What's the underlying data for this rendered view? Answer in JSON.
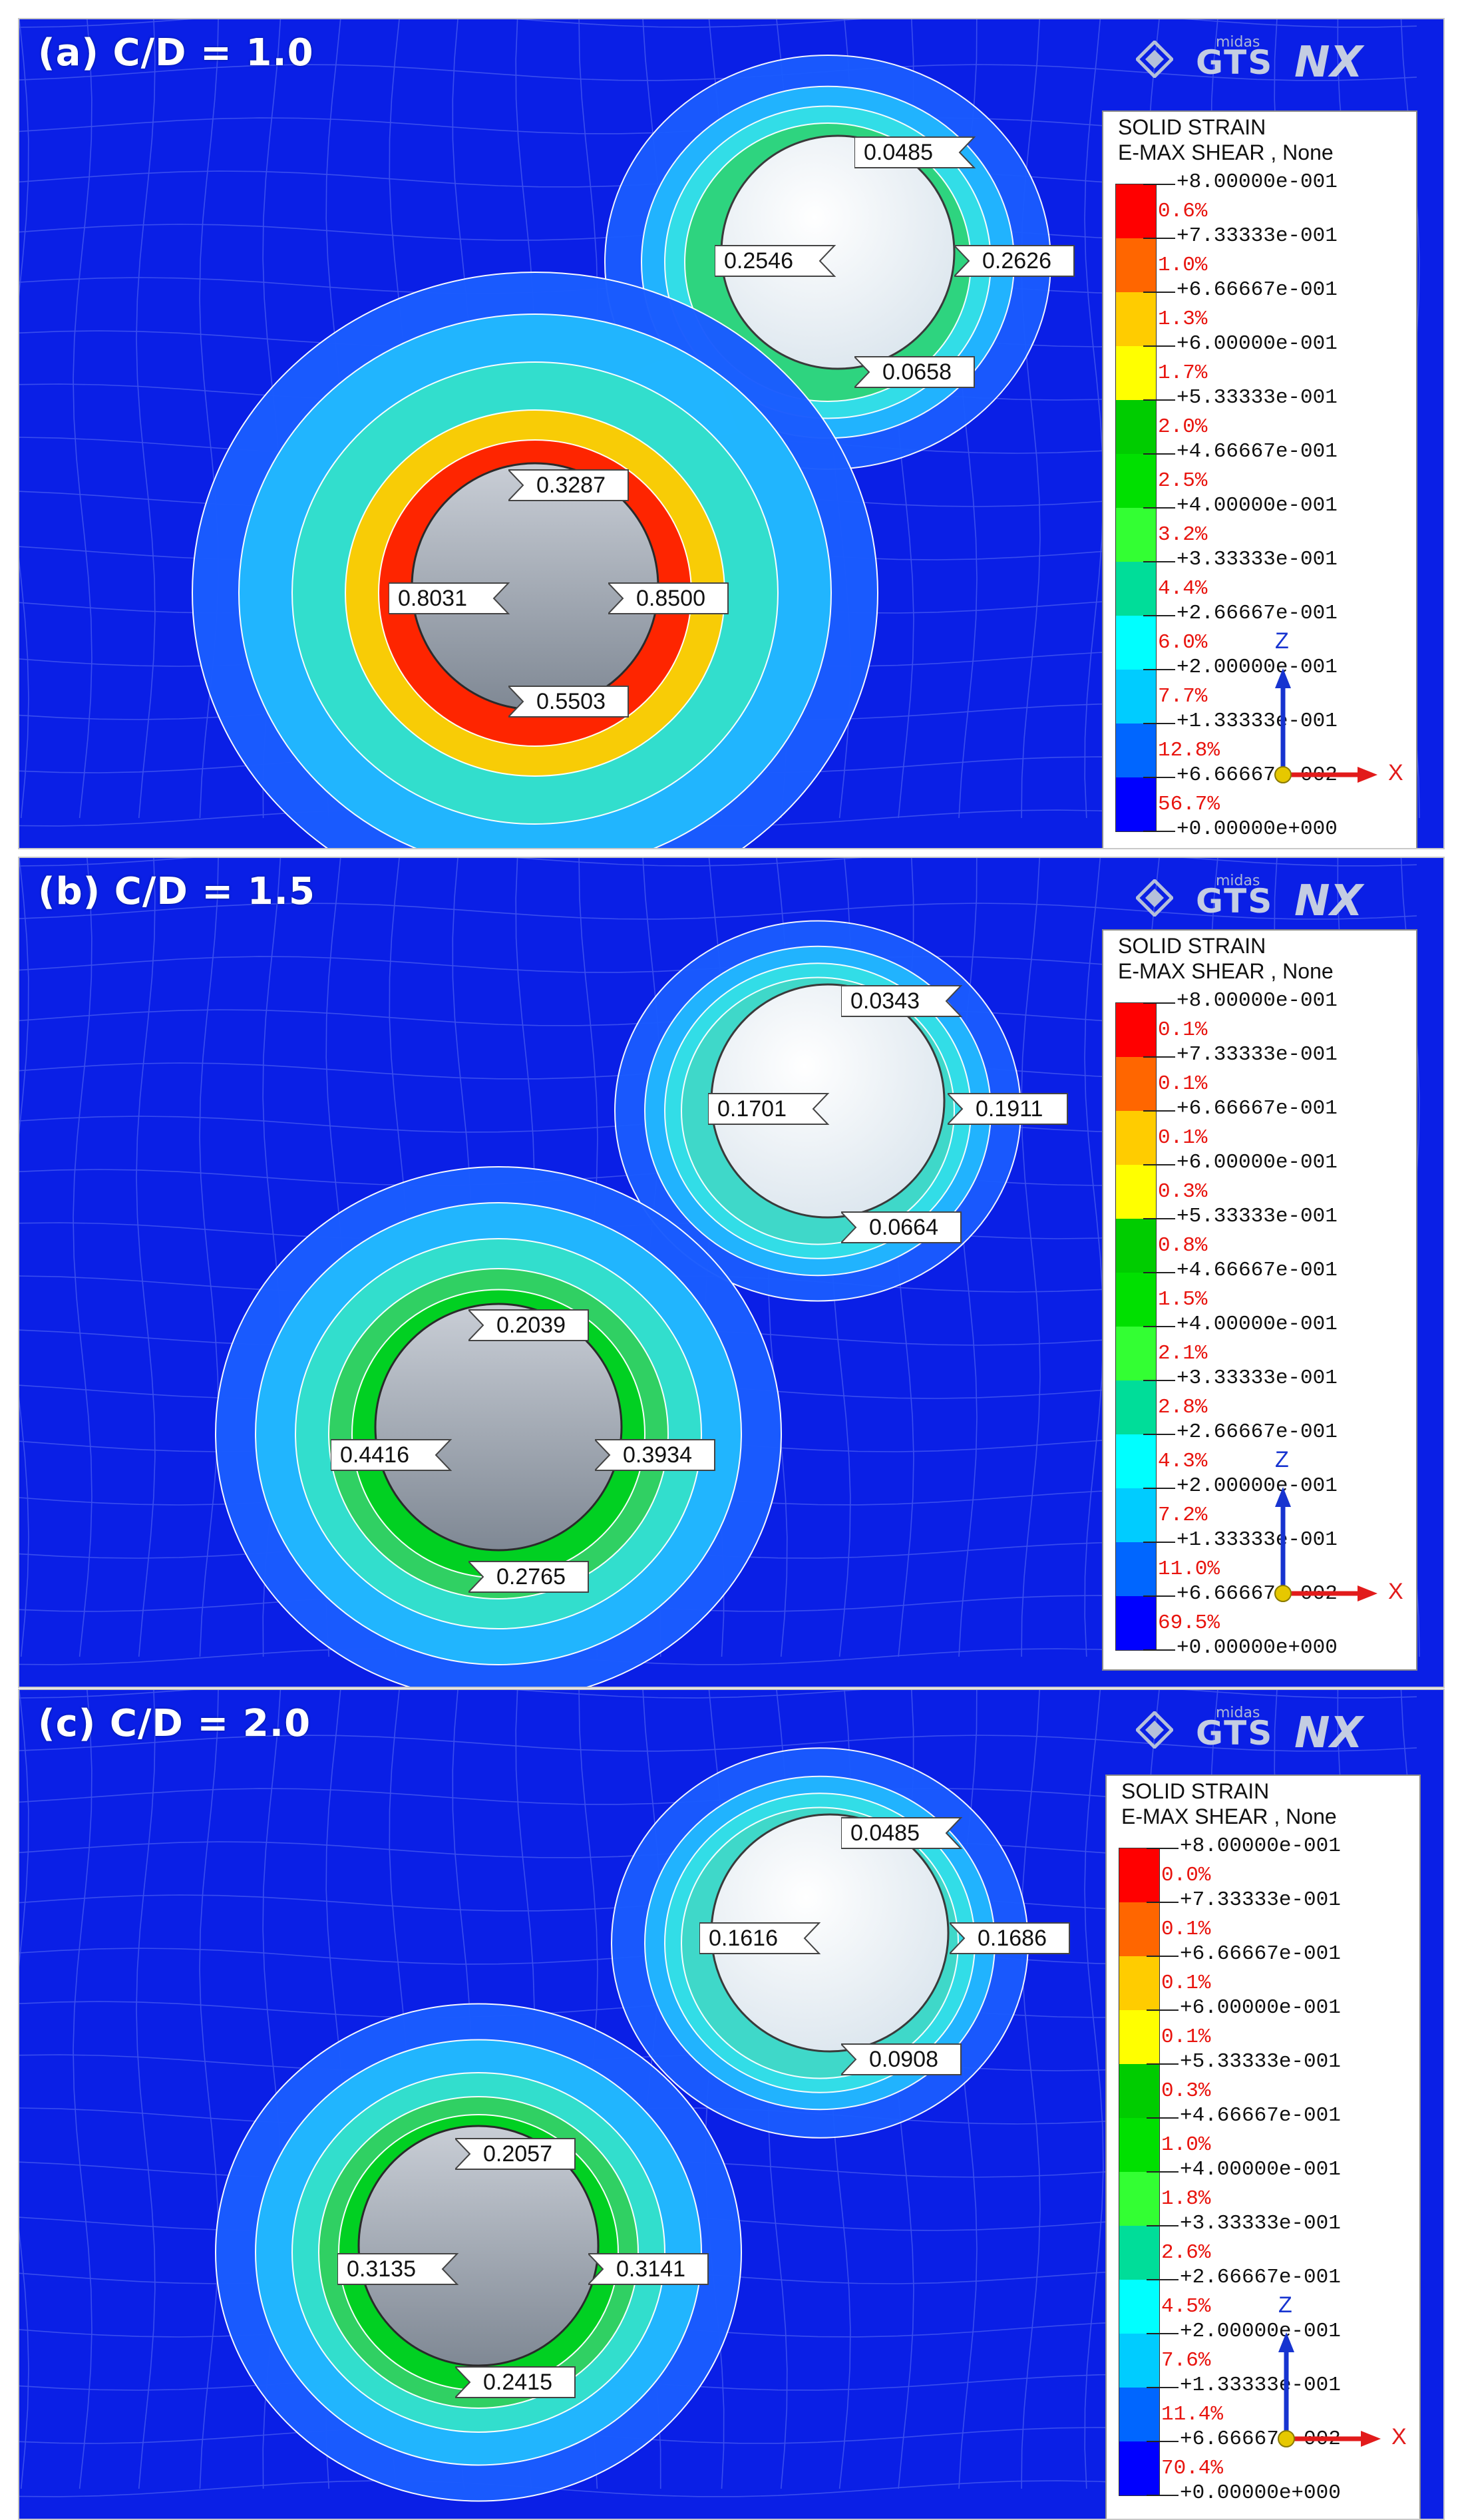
{
  "colors": {
    "background": "#0a1fe6",
    "legend_bands": [
      "#ff0000",
      "#ff6600",
      "#ffcc00",
      "#ffff00",
      "#00cc00",
      "#00e000",
      "#33ff33",
      "#00dd99",
      "#00ffff",
      "#00ccff",
      "#0066ff",
      "#0000ff"
    ],
    "x_axis": "#e21b1b",
    "z_axis": "#1734d0"
  },
  "logo": {
    "text_small": "midas",
    "text_main": "GTS",
    "text_suffix": "NX"
  },
  "legend_common": {
    "title1": "SOLID STRAIN",
    "title2": "E-MAX SHEAR , None",
    "values": [
      "+8.00000e-001",
      "+7.33333e-001",
      "+6.66667e-001",
      "+6.00000e-001",
      "+5.33333e-001",
      "+4.66667e-001",
      "+4.00000e-001",
      "+3.33333e-001",
      "+2.66667e-001",
      "+2.00000e-001",
      "+1.33333e-001",
      "+6.66667e-002",
      "+0.00000e+000"
    ],
    "axis_x_label": "X",
    "axis_z_label": "Z"
  },
  "panels": [
    {
      "title": "(a) C/D = 1.0",
      "percentages": [
        "0.6%",
        "1.0%",
        "1.3%",
        "1.7%",
        "2.0%",
        "2.5%",
        "3.2%",
        "4.4%",
        "6.0%",
        "7.7%",
        "12.8%",
        "56.7%"
      ],
      "upper_tunnel": {
        "top": "0.0485",
        "left": "0.2546",
        "right": "0.2626",
        "bottom": "0.0658"
      },
      "lower_tunnel": {
        "top": "0.3287",
        "left": "0.8031",
        "right": "0.8500",
        "bottom": "0.5503"
      }
    },
    {
      "title": "(b) C/D = 1.5",
      "percentages": [
        "0.1%",
        "0.1%",
        "0.1%",
        "0.3%",
        "0.8%",
        "1.5%",
        "2.1%",
        "2.8%",
        "4.3%",
        "7.2%",
        "11.0%",
        "69.5%"
      ],
      "upper_tunnel": {
        "top": "0.0343",
        "left": "0.1701",
        "right": "0.1911",
        "bottom": "0.0664"
      },
      "lower_tunnel": {
        "top": "0.2039",
        "left": "0.4416",
        "right": "0.3934",
        "bottom": "0.2765"
      }
    },
    {
      "title": "(c) C/D = 2.0",
      "percentages": [
        "0.0%",
        "0.1%",
        "0.1%",
        "0.1%",
        "0.3%",
        "1.0%",
        "1.8%",
        "2.6%",
        "4.5%",
        "7.6%",
        "11.4%",
        "70.4%"
      ],
      "upper_tunnel": {
        "top": "0.0485",
        "left": "0.1616",
        "right": "0.1686",
        "bottom": "0.0908"
      },
      "lower_tunnel": {
        "top": "0.2057",
        "left": "0.3135",
        "right": "0.3141",
        "bottom": "0.2415"
      }
    }
  ]
}
